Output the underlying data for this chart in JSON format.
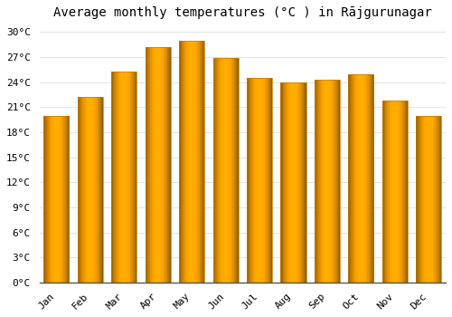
{
  "title": "Average monthly temperatures (°C ) in Rājgurunagar",
  "months": [
    "Jan",
    "Feb",
    "Mar",
    "Apr",
    "May",
    "Jun",
    "Jul",
    "Aug",
    "Sep",
    "Oct",
    "Nov",
    "Dec"
  ],
  "values": [
    20.0,
    22.2,
    25.3,
    28.2,
    29.0,
    26.9,
    24.5,
    24.0,
    24.3,
    24.9,
    21.8,
    20.0
  ],
  "bar_color_main": "#FFA500",
  "bar_color_light": "#FFD060",
  "bar_color_dark": "#E08000",
  "background_color": "#FFFFFF",
  "grid_color": "#DDDDDD",
  "ylim": [
    0,
    31
  ],
  "yticks": [
    0,
    3,
    6,
    9,
    12,
    15,
    18,
    21,
    24,
    27,
    30
  ],
  "ytick_labels": [
    "0°C",
    "3°C",
    "6°C",
    "9°C",
    "12°C",
    "15°C",
    "18°C",
    "21°C",
    "24°C",
    "27°C",
    "30°C"
  ],
  "title_fontsize": 10,
  "tick_fontsize": 8,
  "figsize": [
    5.0,
    3.5
  ],
  "dpi": 100
}
